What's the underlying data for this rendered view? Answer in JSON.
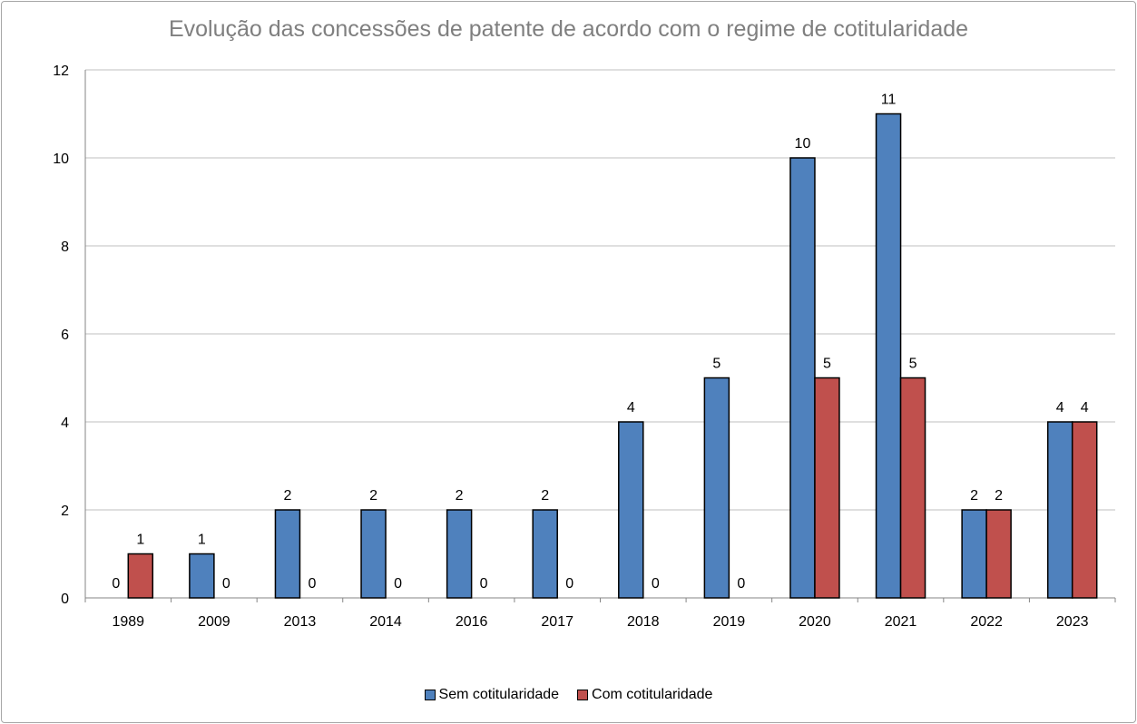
{
  "chart_data": {
    "type": "bar",
    "title": "Evolução das concessões  de patente de acordo com o regime de cotitularidade",
    "xlabel": "",
    "ylabel": "",
    "ylim": [
      0,
      12
    ],
    "yticks": [
      "0",
      "2",
      "4",
      "6",
      "8",
      "10",
      "12"
    ],
    "grid": true,
    "legend_position": "bottom",
    "categories": [
      "1989",
      "2009",
      "2013",
      "2014",
      "2016",
      "2017",
      "2018",
      "2019",
      "2020",
      "2021",
      "2022",
      "2023"
    ],
    "series": [
      {
        "name": "Sem cotitularidade",
        "color": "#4f81bd",
        "values": [
          0,
          1,
          2,
          2,
          2,
          2,
          4,
          5,
          10,
          11,
          2,
          4
        ]
      },
      {
        "name": "Com cotitularidade",
        "color": "#c0504d",
        "values": [
          1,
          0,
          0,
          0,
          0,
          0,
          0,
          0,
          5,
          5,
          2,
          4
        ]
      }
    ]
  }
}
